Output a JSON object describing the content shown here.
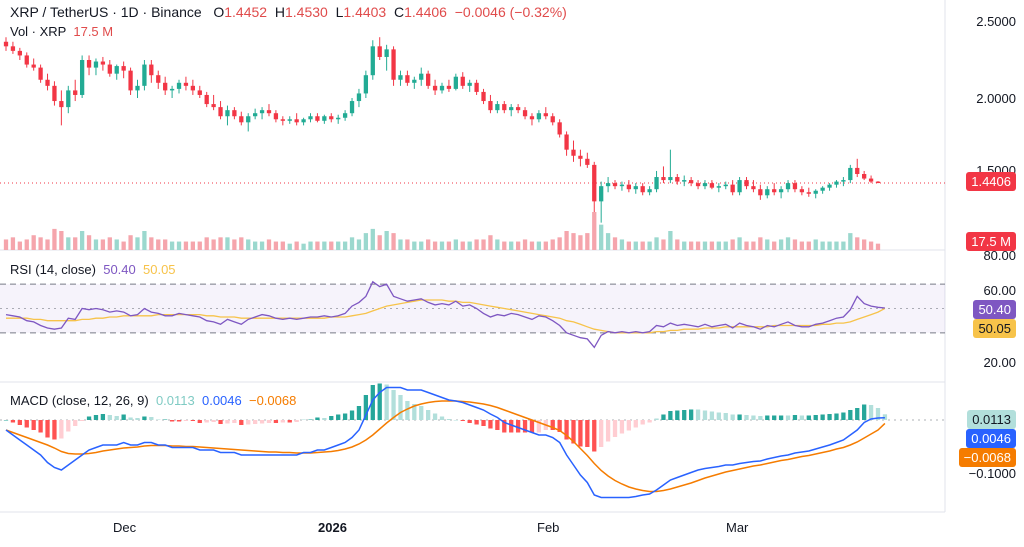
{
  "header": {
    "symbol": "XRP / TetherUS · 1D · Binance",
    "o_label": "O",
    "o_value": "1.4452",
    "h_label": "H",
    "h_value": "1.4530",
    "l_label": "L",
    "l_value": "1.4403",
    "c_label": "C",
    "c_value": "1.4406",
    "change": "−0.0046 (−0.32%)"
  },
  "volume": {
    "label": "Vol · XRP",
    "value": "17.5 M",
    "tag": "17.5 M"
  },
  "price_axis": {
    "labels": [
      "2.5000",
      "2.0000",
      "1.5000"
    ],
    "last_tag": "1.4406"
  },
  "rsi": {
    "label": "RSI (14, close)",
    "value1": "50.40",
    "value2": "50.05",
    "axis": [
      "80.00",
      "60.00",
      "20.00"
    ],
    "tag1": "50.40",
    "tag2": "50.05"
  },
  "macd": {
    "label": "MACD (close, 12, 26, 9)",
    "hist": "0.0113",
    "macd": "0.0046",
    "signal": "−0.0068",
    "axis": "−0.1000",
    "tag1": "0.0113",
    "tag2": "0.0046",
    "tag3": "−0.0068"
  },
  "x_axis": {
    "labels": [
      "Dec",
      "2026",
      "Feb",
      "Mar"
    ]
  },
  "colors": {
    "up": "#22ab94",
    "down": "#f23645",
    "rsi": "#7e57c2",
    "rsi_ma": "#f7c34a",
    "macd": "#2962ff",
    "signal": "#f57c00",
    "hist_up": "#26a69a",
    "hist_up_light": "#b2dfdb",
    "hist_down": "#ff5252",
    "hist_down_light": "#ffcdd2"
  },
  "chart_data": {
    "type": "candlestick",
    "ohlc": [
      [
        2.37,
        2.4,
        2.31,
        2.34
      ],
      [
        2.34,
        2.37,
        2.29,
        2.31
      ],
      [
        2.31,
        2.33,
        2.25,
        2.28
      ],
      [
        2.28,
        2.3,
        2.2,
        2.22
      ],
      [
        2.22,
        2.26,
        2.18,
        2.2
      ],
      [
        2.2,
        2.22,
        2.1,
        2.12
      ],
      [
        2.12,
        2.16,
        2.05,
        2.08
      ],
      [
        2.08,
        2.11,
        1.95,
        1.98
      ],
      [
        1.98,
        2.05,
        1.82,
        1.94
      ],
      [
        1.94,
        2.08,
        1.9,
        2.05
      ],
      [
        2.05,
        2.12,
        1.98,
        2.02
      ],
      [
        2.02,
        2.28,
        2.0,
        2.25
      ],
      [
        2.25,
        2.28,
        2.15,
        2.2
      ],
      [
        2.2,
        2.26,
        2.15,
        2.24
      ],
      [
        2.24,
        2.27,
        2.18,
        2.22
      ],
      [
        2.22,
        2.25,
        2.14,
        2.16
      ],
      [
        2.16,
        2.22,
        2.12,
        2.21
      ],
      [
        2.21,
        2.24,
        2.13,
        2.18
      ],
      [
        2.18,
        2.2,
        2.02,
        2.05
      ],
      [
        2.05,
        2.12,
        2.0,
        2.08
      ],
      [
        2.08,
        2.25,
        2.05,
        2.22
      ],
      [
        2.22,
        2.25,
        2.1,
        2.15
      ],
      [
        2.15,
        2.18,
        2.06,
        2.1
      ],
      [
        2.1,
        2.14,
        2.02,
        2.05
      ],
      [
        2.05,
        2.08,
        2.0,
        2.06
      ],
      [
        2.06,
        2.12,
        2.03,
        2.1
      ],
      [
        2.1,
        2.14,
        2.05,
        2.08
      ],
      [
        2.08,
        2.12,
        2.02,
        2.05
      ],
      [
        2.05,
        2.08,
        2.0,
        2.02
      ],
      [
        2.02,
        2.04,
        1.94,
        1.96
      ],
      [
        1.96,
        2.02,
        1.92,
        1.94
      ],
      [
        1.94,
        1.98,
        1.86,
        1.88
      ],
      [
        1.88,
        1.95,
        1.82,
        1.92
      ],
      [
        1.92,
        1.94,
        1.86,
        1.88
      ],
      [
        1.88,
        1.91,
        1.82,
        1.84
      ],
      [
        1.84,
        1.9,
        1.78,
        1.88
      ],
      [
        1.88,
        1.93,
        1.86,
        1.9
      ],
      [
        1.9,
        1.94,
        1.86,
        1.92
      ],
      [
        1.92,
        1.96,
        1.88,
        1.9
      ],
      [
        1.9,
        1.92,
        1.84,
        1.86
      ],
      [
        1.86,
        1.88,
        1.82,
        1.85
      ],
      [
        1.85,
        1.88,
        1.83,
        1.86
      ],
      [
        1.86,
        1.9,
        1.82,
        1.84
      ],
      [
        1.84,
        1.87,
        1.82,
        1.86
      ],
      [
        1.86,
        1.9,
        1.84,
        1.88
      ],
      [
        1.88,
        1.9,
        1.84,
        1.85
      ],
      [
        1.85,
        1.89,
        1.83,
        1.88
      ],
      [
        1.88,
        1.9,
        1.84,
        1.86
      ],
      [
        1.86,
        1.89,
        1.83,
        1.87
      ],
      [
        1.87,
        1.92,
        1.85,
        1.9
      ],
      [
        1.9,
        2.0,
        1.88,
        1.98
      ],
      [
        1.98,
        2.06,
        1.94,
        2.03
      ],
      [
        2.03,
        2.18,
        2.0,
        2.15
      ],
      [
        2.15,
        2.38,
        2.12,
        2.34
      ],
      [
        2.34,
        2.4,
        2.25,
        2.27
      ],
      [
        2.27,
        2.35,
        2.18,
        2.32
      ],
      [
        2.32,
        2.34,
        2.08,
        2.12
      ],
      [
        2.12,
        2.18,
        2.08,
        2.15
      ],
      [
        2.15,
        2.18,
        2.08,
        2.1
      ],
      [
        2.1,
        2.14,
        2.06,
        2.12
      ],
      [
        2.12,
        2.2,
        2.08,
        2.16
      ],
      [
        2.16,
        2.18,
        2.06,
        2.08
      ],
      [
        2.08,
        2.12,
        2.02,
        2.05
      ],
      [
        2.05,
        2.1,
        2.03,
        2.08
      ],
      [
        2.08,
        2.12,
        2.04,
        2.06
      ],
      [
        2.06,
        2.16,
        2.05,
        2.14
      ],
      [
        2.14,
        2.17,
        2.06,
        2.08
      ],
      [
        2.08,
        2.12,
        2.04,
        2.1
      ],
      [
        2.1,
        2.12,
        2.02,
        2.04
      ],
      [
        2.04,
        2.06,
        1.96,
        1.98
      ],
      [
        1.98,
        2.02,
        1.9,
        1.92
      ],
      [
        1.92,
        1.98,
        1.9,
        1.96
      ],
      [
        1.96,
        1.98,
        1.9,
        1.92
      ],
      [
        1.92,
        1.96,
        1.88,
        1.94
      ],
      [
        1.94,
        1.96,
        1.9,
        1.92
      ],
      [
        1.92,
        1.94,
        1.86,
        1.88
      ],
      [
        1.88,
        1.9,
        1.82,
        1.86
      ],
      [
        1.86,
        1.92,
        1.84,
        1.9
      ],
      [
        1.9,
        1.94,
        1.86,
        1.88
      ],
      [
        1.88,
        1.9,
        1.82,
        1.84
      ],
      [
        1.84,
        1.86,
        1.74,
        1.76
      ],
      [
        1.76,
        1.78,
        1.62,
        1.66
      ],
      [
        1.66,
        1.72,
        1.58,
        1.62
      ],
      [
        1.62,
        1.66,
        1.55,
        1.6
      ],
      [
        1.6,
        1.64,
        1.54,
        1.56
      ],
      [
        1.56,
        1.58,
        1.25,
        1.32
      ],
      [
        1.32,
        1.45,
        1.18,
        1.42
      ],
      [
        1.42,
        1.48,
        1.38,
        1.44
      ],
      [
        1.44,
        1.46,
        1.4,
        1.42
      ],
      [
        1.42,
        1.45,
        1.39,
        1.43
      ],
      [
        1.43,
        1.46,
        1.38,
        1.4
      ],
      [
        1.4,
        1.44,
        1.37,
        1.42
      ],
      [
        1.42,
        1.44,
        1.36,
        1.38
      ],
      [
        1.38,
        1.42,
        1.36,
        1.4
      ],
      [
        1.4,
        1.52,
        1.38,
        1.48
      ],
      [
        1.48,
        1.55,
        1.44,
        1.46
      ],
      [
        1.46,
        1.66,
        1.44,
        1.48
      ],
      [
        1.48,
        1.5,
        1.43,
        1.45
      ],
      [
        1.45,
        1.49,
        1.42,
        1.46
      ],
      [
        1.46,
        1.48,
        1.42,
        1.44
      ],
      [
        1.44,
        1.46,
        1.4,
        1.42
      ],
      [
        1.42,
        1.46,
        1.4,
        1.44
      ],
      [
        1.44,
        1.46,
        1.4,
        1.41
      ],
      [
        1.41,
        1.44,
        1.38,
        1.42
      ],
      [
        1.42,
        1.45,
        1.4,
        1.43
      ],
      [
        1.43,
        1.46,
        1.36,
        1.38
      ],
      [
        1.38,
        1.48,
        1.36,
        1.46
      ],
      [
        1.46,
        1.48,
        1.4,
        1.42
      ],
      [
        1.42,
        1.46,
        1.38,
        1.4
      ],
      [
        1.4,
        1.43,
        1.33,
        1.36
      ],
      [
        1.36,
        1.42,
        1.34,
        1.4
      ],
      [
        1.4,
        1.44,
        1.36,
        1.38
      ],
      [
        1.38,
        1.42,
        1.34,
        1.4
      ],
      [
        1.4,
        1.46,
        1.38,
        1.44
      ],
      [
        1.44,
        1.46,
        1.38,
        1.4
      ],
      [
        1.4,
        1.42,
        1.36,
        1.38
      ],
      [
        1.38,
        1.41,
        1.35,
        1.37
      ],
      [
        1.37,
        1.4,
        1.34,
        1.39
      ],
      [
        1.39,
        1.42,
        1.37,
        1.41
      ],
      [
        1.41,
        1.44,
        1.39,
        1.43
      ],
      [
        1.43,
        1.46,
        1.41,
        1.45
      ],
      [
        1.45,
        1.48,
        1.42,
        1.46
      ],
      [
        1.46,
        1.56,
        1.44,
        1.54
      ],
      [
        1.54,
        1.6,
        1.48,
        1.5
      ],
      [
        1.5,
        1.52,
        1.46,
        1.47
      ],
      [
        1.47,
        1.49,
        1.44,
        1.45
      ],
      [
        1.45,
        1.453,
        1.4403,
        1.4406
      ]
    ],
    "volume": [
      5,
      6,
      4,
      5,
      7,
      6,
      5,
      10,
      9,
      6,
      6,
      9,
      7,
      5,
      5,
      6,
      5,
      4,
      7,
      6,
      9,
      6,
      5,
      5,
      4,
      4,
      4,
      4,
      4,
      6,
      5,
      6,
      6,
      5,
      6,
      5,
      4,
      4,
      5,
      4,
      4,
      3,
      4,
      3,
      4,
      4,
      4,
      4,
      4,
      4,
      6,
      5,
      8,
      10,
      7,
      9,
      8,
      5,
      5,
      4,
      4,
      5,
      4,
      4,
      4,
      5,
      4,
      4,
      5,
      5,
      7,
      5,
      4,
      4,
      4,
      5,
      4,
      4,
      4,
      5,
      6,
      9,
      8,
      7,
      8,
      18,
      12,
      8,
      6,
      5,
      4,
      4,
      4,
      4,
      6,
      5,
      9,
      5,
      4,
      4,
      4,
      4,
      4,
      4,
      4,
      5,
      6,
      4,
      4,
      6,
      5,
      4,
      5,
      6,
      5,
      4,
      4,
      5,
      4,
      4,
      4,
      4,
      8,
      6,
      5,
      4,
      3
    ],
    "rsi": [
      45,
      44,
      43,
      40,
      39,
      36,
      34,
      33,
      34,
      42,
      41,
      50,
      49,
      50,
      49,
      47,
      48,
      47,
      44,
      45,
      50,
      47,
      46,
      44,
      44,
      46,
      45,
      44,
      43,
      40,
      39,
      37,
      41,
      39,
      37,
      41,
      43,
      45,
      44,
      42,
      41,
      42,
      41,
      42,
      43,
      43,
      44,
      43,
      44,
      46,
      52,
      55,
      60,
      72,
      68,
      70,
      60,
      58,
      56,
      57,
      58,
      55,
      53,
      54,
      53,
      56,
      52,
      53,
      50,
      46,
      43,
      45,
      44,
      46,
      45,
      43,
      41,
      44,
      43,
      40,
      36,
      30,
      28,
      26,
      25,
      18,
      28,
      31,
      30,
      31,
      30,
      31,
      30,
      31,
      36,
      35,
      38,
      36,
      37,
      36,
      35,
      37,
      35,
      36,
      37,
      34,
      38,
      36,
      35,
      33,
      36,
      35,
      37,
      39,
      36,
      35,
      35,
      37,
      38,
      40,
      42,
      43,
      49,
      60,
      54,
      52,
      51,
      50.4
    ],
    "rsi_ma": [
      42,
      42,
      42,
      42,
      41,
      41,
      40,
      40,
      40,
      40,
      40,
      41,
      41,
      42,
      42,
      43,
      43,
      44,
      44,
      44,
      44,
      44,
      45,
      45,
      45,
      45,
      45,
      45,
      45,
      44,
      44,
      43,
      43,
      43,
      42,
      42,
      42,
      42,
      42,
      42,
      42,
      42,
      42,
      42,
      42,
      42,
      42,
      43,
      43,
      43,
      44,
      45,
      46,
      48,
      50,
      52,
      53,
      54,
      55,
      56,
      57,
      57,
      57,
      57,
      56,
      56,
      55,
      55,
      54,
      53,
      52,
      51,
      50,
      49,
      48,
      47,
      46,
      45,
      44,
      43,
      42,
      40,
      39,
      37,
      35,
      33,
      32,
      31,
      30,
      30,
      30,
      30,
      30,
      30,
      31,
      31,
      32,
      32,
      33,
      33,
      33,
      34,
      34,
      34,
      35,
      35,
      35,
      35,
      35,
      35,
      35,
      36,
      36,
      36,
      36,
      36,
      36,
      36,
      37,
      37,
      38,
      38,
      39,
      41,
      43,
      45,
      47,
      50.05
    ],
    "macd": [
      -0.02,
      -0.03,
      -0.04,
      -0.05,
      -0.06,
      -0.07,
      -0.085,
      -0.095,
      -0.1,
      -0.09,
      -0.08,
      -0.07,
      -0.06,
      -0.055,
      -0.05,
      -0.05,
      -0.05,
      -0.045,
      -0.05,
      -0.05,
      -0.045,
      -0.045,
      -0.05,
      -0.05,
      -0.055,
      -0.055,
      -0.055,
      -0.055,
      -0.06,
      -0.06,
      -0.06,
      -0.065,
      -0.065,
      -0.065,
      -0.07,
      -0.07,
      -0.07,
      -0.07,
      -0.07,
      -0.07,
      -0.07,
      -0.07,
      -0.07,
      -0.065,
      -0.065,
      -0.06,
      -0.06,
      -0.055,
      -0.05,
      -0.045,
      -0.035,
      -0.02,
      0.01,
      0.04,
      0.055,
      0.065,
      0.065,
      0.065,
      0.06,
      0.06,
      0.06,
      0.055,
      0.05,
      0.045,
      0.04,
      0.038,
      0.035,
      0.03,
      0.025,
      0.02,
      0.012,
      0.005,
      -0.005,
      -0.01,
      -0.015,
      -0.02,
      -0.025,
      -0.03,
      -0.03,
      -0.035,
      -0.045,
      -0.07,
      -0.09,
      -0.11,
      -0.125,
      -0.15,
      -0.155,
      -0.155,
      -0.155,
      -0.155,
      -0.155,
      -0.153,
      -0.15,
      -0.148,
      -0.14,
      -0.13,
      -0.12,
      -0.115,
      -0.11,
      -0.105,
      -0.1,
      -0.097,
      -0.095,
      -0.093,
      -0.09,
      -0.09,
      -0.087,
      -0.085,
      -0.083,
      -0.082,
      -0.078,
      -0.075,
      -0.072,
      -0.07,
      -0.066,
      -0.064,
      -0.062,
      -0.058,
      -0.054,
      -0.05,
      -0.045,
      -0.04,
      -0.03,
      -0.02,
      -0.005,
      0.002,
      0.004,
      0.0046
    ],
    "signal": [
      -0.02,
      -0.025,
      -0.03,
      -0.035,
      -0.04,
      -0.045,
      -0.05,
      -0.056,
      -0.063,
      -0.067,
      -0.068,
      -0.068,
      -0.067,
      -0.065,
      -0.062,
      -0.06,
      -0.058,
      -0.056,
      -0.055,
      -0.054,
      -0.052,
      -0.051,
      -0.051,
      -0.051,
      -0.052,
      -0.052,
      -0.053,
      -0.053,
      -0.054,
      -0.055,
      -0.056,
      -0.057,
      -0.058,
      -0.059,
      -0.06,
      -0.061,
      -0.062,
      -0.063,
      -0.064,
      -0.064,
      -0.065,
      -0.065,
      -0.066,
      -0.066,
      -0.066,
      -0.065,
      -0.064,
      -0.063,
      -0.061,
      -0.058,
      -0.054,
      -0.048,
      -0.04,
      -0.03,
      -0.018,
      -0.006,
      0.005,
      0.015,
      0.022,
      0.028,
      0.032,
      0.035,
      0.037,
      0.038,
      0.038,
      0.038,
      0.037,
      0.036,
      0.034,
      0.032,
      0.029,
      0.025,
      0.02,
      0.015,
      0.01,
      0.005,
      0.0,
      -0.005,
      -0.01,
      -0.015,
      -0.021,
      -0.031,
      -0.043,
      -0.057,
      -0.071,
      -0.087,
      -0.101,
      -0.112,
      -0.121,
      -0.128,
      -0.134,
      -0.138,
      -0.141,
      -0.143,
      -0.143,
      -0.141,
      -0.138,
      -0.134,
      -0.13,
      -0.126,
      -0.121,
      -0.116,
      -0.112,
      -0.108,
      -0.104,
      -0.101,
      -0.098,
      -0.095,
      -0.092,
      -0.09,
      -0.087,
      -0.084,
      -0.081,
      -0.079,
      -0.076,
      -0.073,
      -0.071,
      -0.068,
      -0.065,
      -0.062,
      -0.058,
      -0.055,
      -0.05,
      -0.044,
      -0.036,
      -0.028,
      -0.02,
      -0.0068
    ],
    "x_labels": [
      "Dec",
      "2026",
      "Feb",
      "Mar"
    ],
    "price_axis": [
      2.5,
      2.0,
      1.5
    ],
    "last_price": 1.4406
  }
}
